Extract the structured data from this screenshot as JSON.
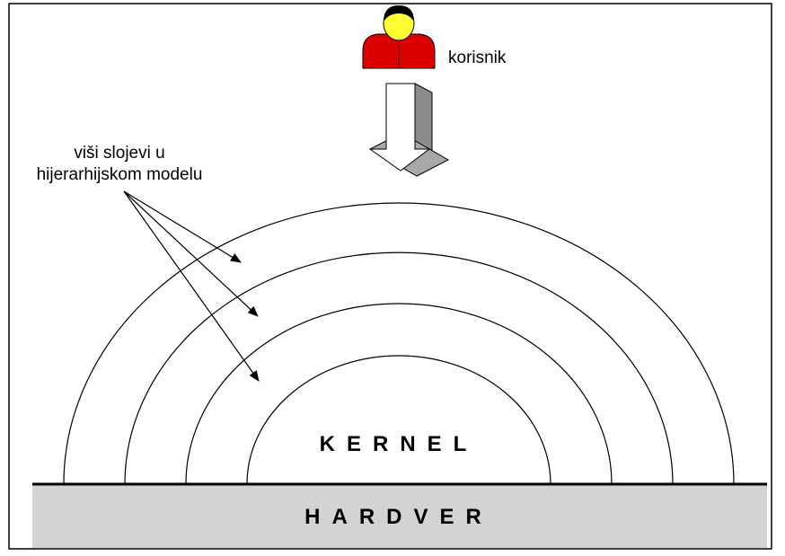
{
  "user": {
    "label": "korisnik",
    "icon": "person-icon",
    "colors": {
      "hair": "#000000",
      "face": "#ffff33",
      "shirt": "#dd0000"
    }
  },
  "layers_annotation": {
    "line1": "viši slojevi u",
    "line2": "hijerarhijskom modelu",
    "arrow_count": 3
  },
  "kernel": {
    "label": "KERNEL"
  },
  "hardware": {
    "label": "HARDVER",
    "color": "#d3d3d3"
  },
  "layers": {
    "ring_count": 4
  },
  "down_arrow": {
    "icon": "down-arrow-icon"
  }
}
